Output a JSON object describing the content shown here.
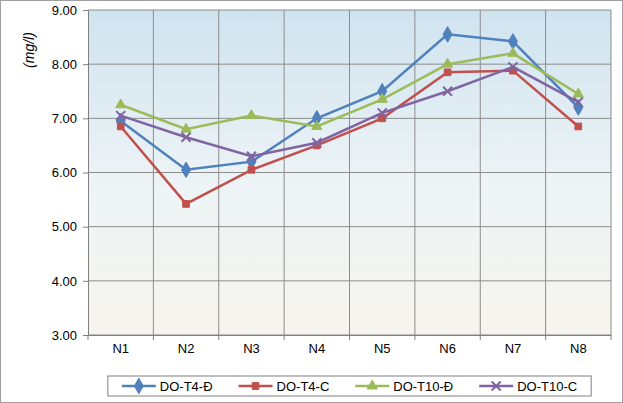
{
  "chart_data": {
    "type": "line",
    "y_label": "(mg/l)",
    "categories": [
      "N1",
      "N2",
      "N3",
      "N4",
      "N5",
      "N6",
      "N7",
      "N8"
    ],
    "series": [
      {
        "name": "DO-T4-Đ",
        "color": "#4f81bd",
        "marker": "diamond",
        "values": [
          6.95,
          6.05,
          6.2,
          7.0,
          7.5,
          8.55,
          8.42,
          7.2
        ]
      },
      {
        "name": "DO-T4-C",
        "color": "#c0504d",
        "marker": "square",
        "values": [
          6.85,
          5.42,
          6.05,
          6.5,
          7.0,
          7.85,
          7.88,
          6.85
        ]
      },
      {
        "name": "DO-T10-Đ",
        "color": "#9bbb59",
        "marker": "triangle",
        "values": [
          7.25,
          6.8,
          7.05,
          6.85,
          7.35,
          8.0,
          8.2,
          7.45
        ]
      },
      {
        "name": "DO-T10-C",
        "color": "#8064a2",
        "marker": "x",
        "values": [
          7.05,
          6.65,
          6.3,
          6.55,
          7.1,
          7.5,
          7.95,
          7.3
        ]
      }
    ],
    "ylim": [
      3,
      9
    ],
    "yticks": [
      {
        "value": 3,
        "label": "3.00"
      },
      {
        "value": 4,
        "label": "4.00"
      },
      {
        "value": 5,
        "label": "5.00"
      },
      {
        "value": 6,
        "label": "6.00"
      },
      {
        "value": 7,
        "label": "7.00"
      },
      {
        "value": 8,
        "label": "8.00"
      },
      {
        "value": 9,
        "label": "9.00"
      }
    ],
    "grid": true,
    "legend": "bottom"
  }
}
